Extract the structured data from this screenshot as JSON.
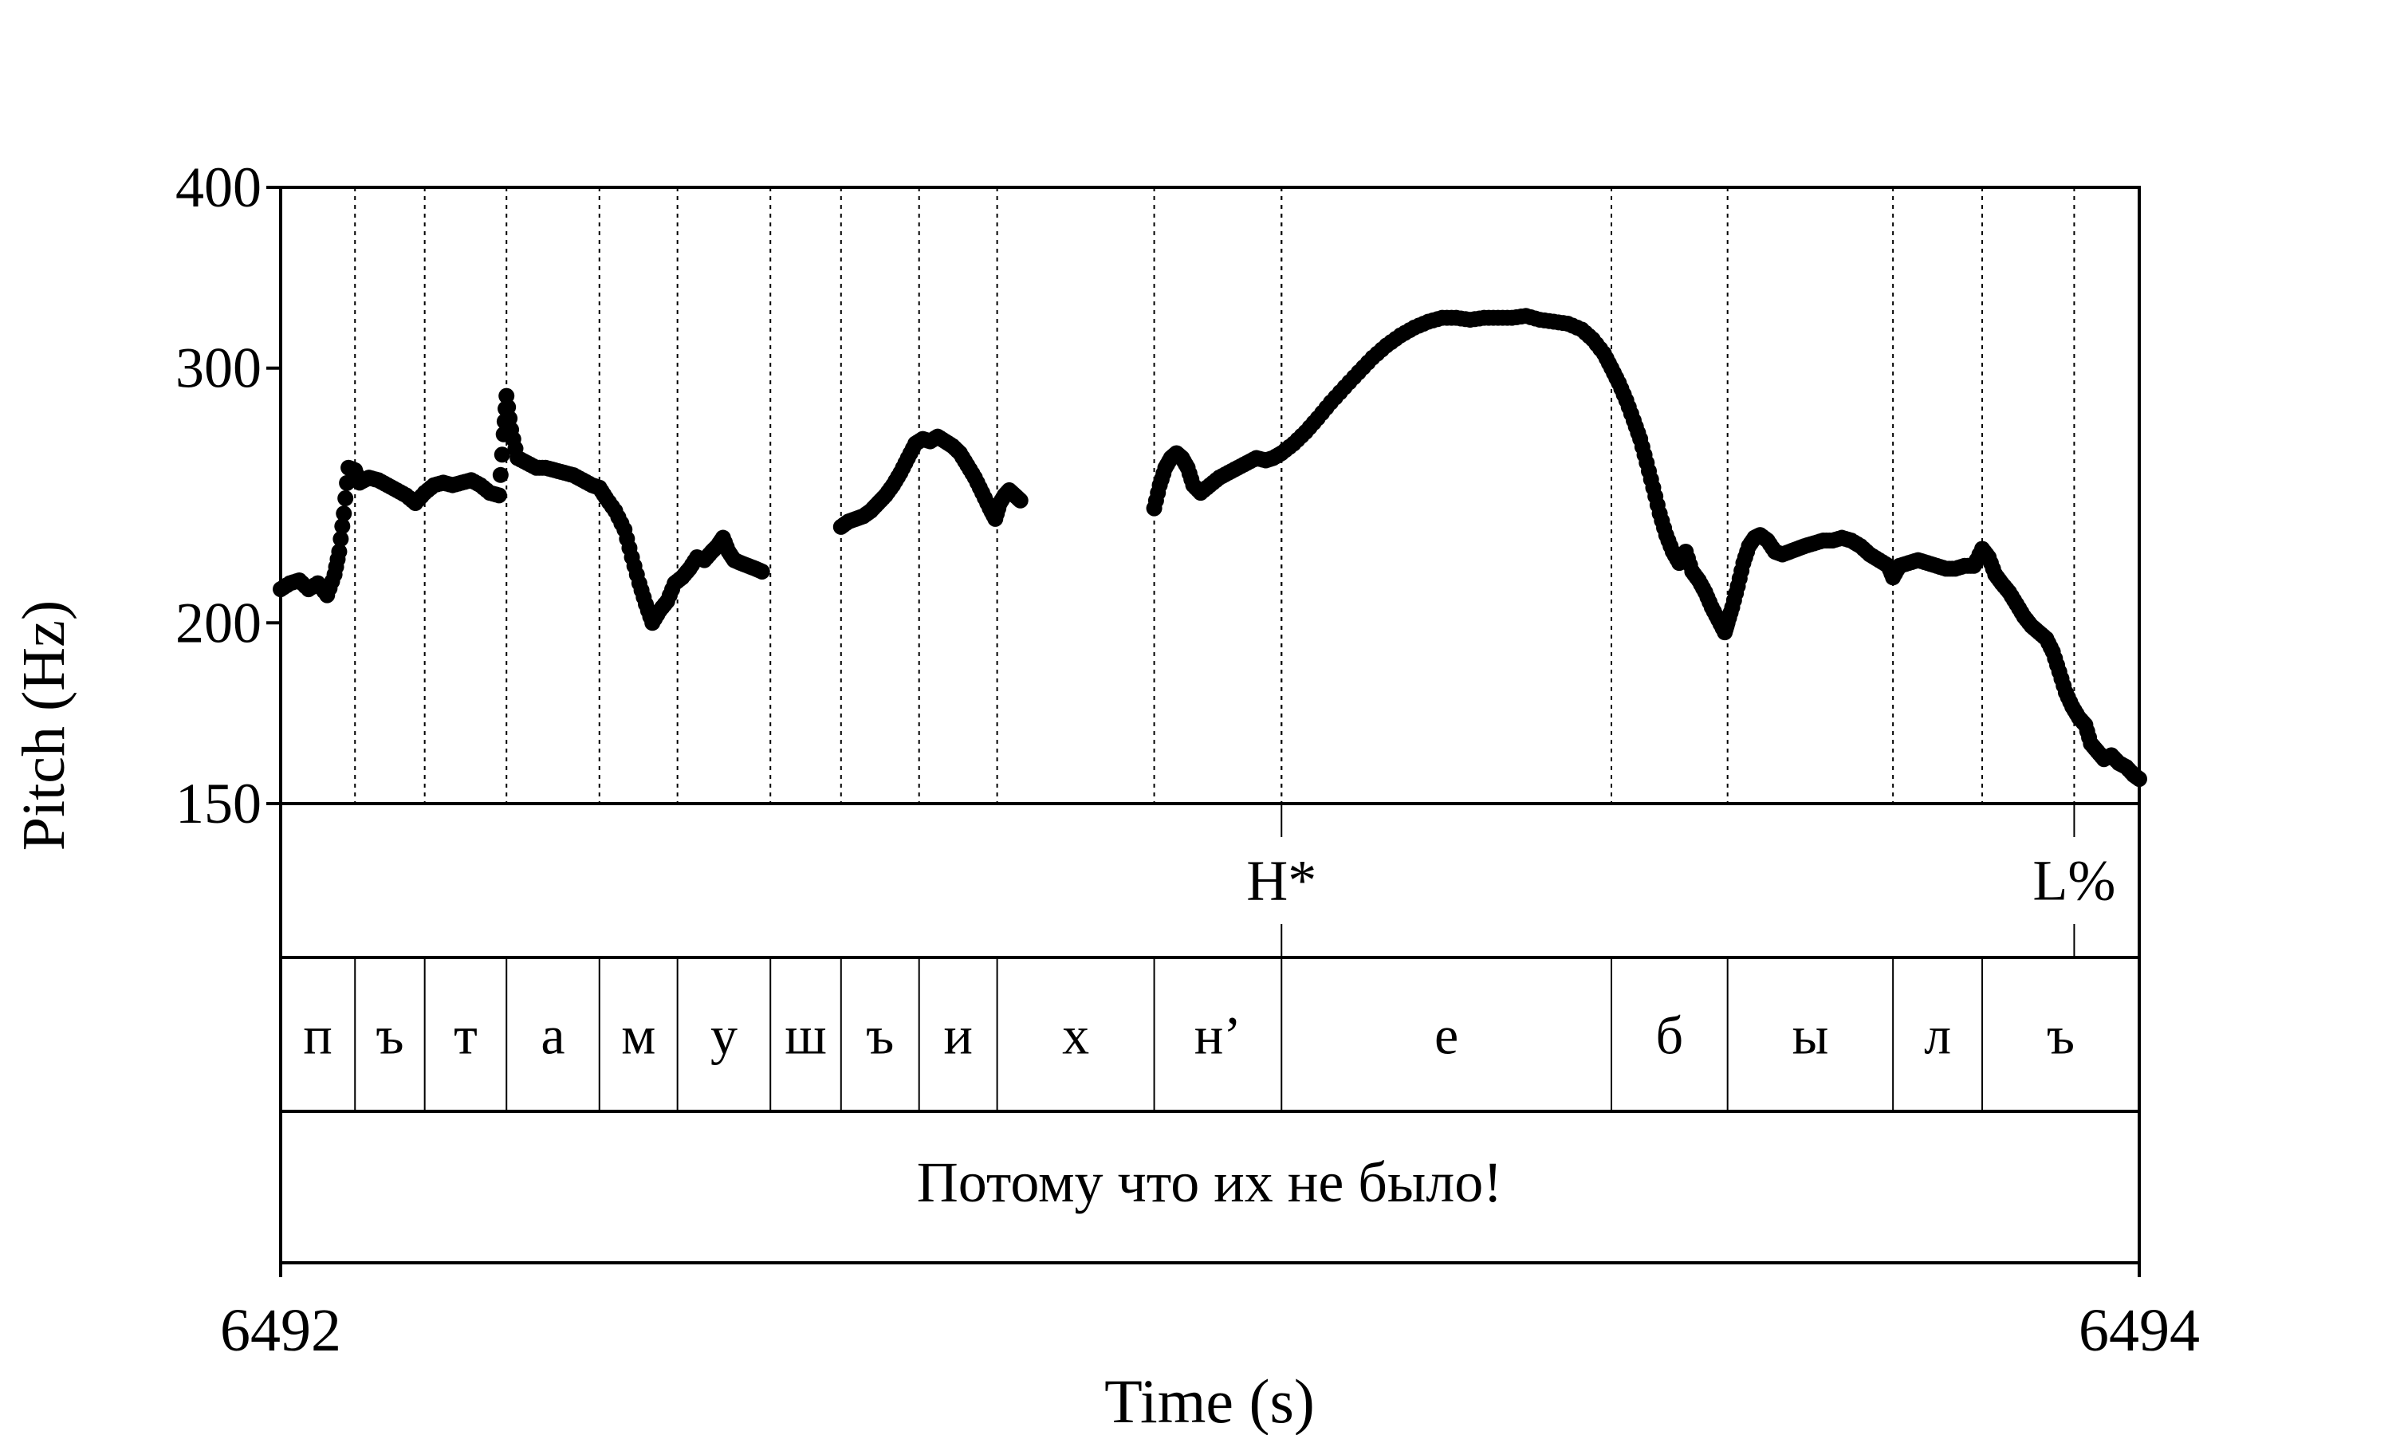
{
  "chart_data": {
    "type": "scatter",
    "title": "",
    "ylabel": "Pitch (Hz)",
    "xlabel": "Time (s)",
    "yscale": "log",
    "ylim": [
      150,
      400
    ],
    "xlim": [
      6492,
      6494
    ],
    "y_ticks": [
      {
        "value": 150,
        "label": "150"
      },
      {
        "value": 200,
        "label": "200"
      },
      {
        "value": 300,
        "label": "300"
      },
      {
        "value": 400,
        "label": "400"
      }
    ],
    "x_ticks": [
      {
        "value": 6492,
        "label": "6492"
      },
      {
        "value": 6494,
        "label": "6494"
      }
    ],
    "segment_boundaries": [
      6492.08,
      6492.155,
      6492.243,
      6492.343,
      6492.427,
      6492.527,
      6492.603,
      6492.687,
      6492.771,
      6492.94,
      6493.077,
      6493.432,
      6493.557,
      6493.735,
      6493.831,
      6494.0
    ],
    "tiers": {
      "tones": [
        {
          "time": 6493.077,
          "label": "H*"
        },
        {
          "time": 6493.93,
          "label": "L%"
        }
      ],
      "segments": [
        {
          "label": "п"
        },
        {
          "label": "ъ"
        },
        {
          "label": "т"
        },
        {
          "label": "а"
        },
        {
          "label": "м"
        },
        {
          "label": "у"
        },
        {
          "label": "ш"
        },
        {
          "label": "ъ"
        },
        {
          "label": "и"
        },
        {
          "label": "х"
        },
        {
          "label": "н’"
        },
        {
          "label": "е"
        },
        {
          "label": "б"
        },
        {
          "label": "ы"
        },
        {
          "label": "л"
        },
        {
          "label": "ъ"
        }
      ],
      "sentence": "Потому что их не было!"
    },
    "series": [
      {
        "points": [
          [
            6492.0,
            211
          ],
          [
            6492.01,
            213
          ],
          [
            6492.02,
            214
          ],
          [
            6492.03,
            211
          ],
          [
            6492.04,
            213
          ],
          [
            6492.05,
            209
          ],
          [
            6492.058,
            216
          ],
          [
            6492.063,
            224
          ],
          [
            6492.068,
            238
          ],
          [
            6492.073,
            256
          ],
          [
            6492.08,
            255
          ],
          [
            6492.085,
            250
          ],
          [
            6492.095,
            252
          ],
          [
            6492.105,
            251
          ],
          [
            6492.115,
            249
          ],
          [
            6492.125,
            247
          ],
          [
            6492.135,
            245
          ],
          [
            6492.145,
            242
          ],
          [
            6492.155,
            246
          ],
          [
            6492.165,
            249
          ],
          [
            6492.175,
            250
          ],
          [
            6492.185,
            249
          ],
          [
            6492.195,
            250
          ],
          [
            6492.205,
            251
          ],
          [
            6492.215,
            249
          ],
          [
            6492.225,
            246
          ],
          [
            6492.235,
            245
          ],
          [
            6492.24,
            270
          ],
          [
            6492.243,
            287
          ],
          [
            6492.248,
            272
          ],
          [
            6492.255,
            260
          ],
          [
            6492.265,
            258
          ],
          [
            6492.275,
            256
          ],
          [
            6492.285,
            256
          ],
          [
            6492.295,
            255
          ],
          [
            6492.305,
            254
          ],
          [
            6492.315,
            253
          ],
          [
            6492.325,
            251
          ],
          [
            6492.335,
            249
          ],
          [
            6492.343,
            248
          ],
          [
            6492.35,
            244
          ],
          [
            6492.36,
            239
          ],
          [
            6492.37,
            232
          ],
          [
            6492.378,
            222
          ],
          [
            6492.386,
            213
          ],
          [
            6492.393,
            206
          ],
          [
            6492.4,
            200
          ],
          [
            6492.408,
            204
          ],
          [
            6492.416,
            207
          ],
          [
            6492.424,
            213
          ],
          [
            6492.432,
            215
          ],
          [
            6492.44,
            218
          ],
          [
            6492.448,
            222
          ],
          [
            6492.456,
            221
          ],
          [
            6492.464,
            224
          ],
          [
            6492.47,
            226
          ],
          [
            6492.476,
            229
          ],
          [
            6492.482,
            224
          ],
          [
            6492.488,
            221
          ],
          [
            6492.495,
            220
          ],
          [
            6492.503,
            219
          ],
          [
            6492.511,
            218
          ],
          [
            6492.518,
            217
          ],
          [
            6492.603,
            233
          ],
          [
            6492.611,
            235
          ],
          [
            6492.619,
            236
          ],
          [
            6492.627,
            237
          ],
          [
            6492.635,
            239
          ],
          [
            6492.643,
            242
          ],
          [
            6492.651,
            245
          ],
          [
            6492.659,
            249
          ],
          [
            6492.667,
            254
          ],
          [
            6492.675,
            260
          ],
          [
            6492.683,
            266
          ],
          [
            6492.691,
            268
          ],
          [
            6492.699,
            267
          ],
          [
            6492.707,
            269
          ],
          [
            6492.715,
            267
          ],
          [
            6492.723,
            265
          ],
          [
            6492.731,
            262
          ],
          [
            6492.739,
            257
          ],
          [
            6492.747,
            252
          ],
          [
            6492.755,
            246
          ],
          [
            6492.763,
            240
          ],
          [
            6492.769,
            236
          ],
          [
            6492.774,
            242
          ],
          [
            6492.779,
            245
          ],
          [
            6492.784,
            247
          ],
          [
            6492.79,
            245
          ],
          [
            6492.796,
            243
          ],
          [
            6492.94,
            240
          ],
          [
            6492.946,
            249
          ],
          [
            6492.952,
            256
          ],
          [
            6492.958,
            260
          ],
          [
            6492.964,
            262
          ],
          [
            6492.97,
            260
          ],
          [
            6492.976,
            256
          ],
          [
            6492.982,
            249
          ],
          [
            6492.99,
            246
          ],
          [
            6493.0,
            249
          ],
          [
            6493.01,
            252
          ],
          [
            6493.02,
            254
          ],
          [
            6493.03,
            256
          ],
          [
            6493.04,
            258
          ],
          [
            6493.05,
            260
          ],
          [
            6493.06,
            259
          ],
          [
            6493.068,
            260
          ],
          [
            6493.077,
            262
          ],
          [
            6493.09,
            266
          ],
          [
            6493.103,
            271
          ],
          [
            6493.116,
            277
          ],
          [
            6493.13,
            284
          ],
          [
            6493.145,
            291
          ],
          [
            6493.16,
            298
          ],
          [
            6493.175,
            305
          ],
          [
            6493.19,
            311
          ],
          [
            6493.205,
            316
          ],
          [
            6493.22,
            320
          ],
          [
            6493.235,
            323
          ],
          [
            6493.25,
            325
          ],
          [
            6493.265,
            325
          ],
          [
            6493.28,
            324
          ],
          [
            6493.295,
            325
          ],
          [
            6493.31,
            325
          ],
          [
            6493.325,
            325
          ],
          [
            6493.34,
            326
          ],
          [
            6493.355,
            324
          ],
          [
            6493.37,
            323
          ],
          [
            6493.385,
            322
          ],
          [
            6493.4,
            319
          ],
          [
            6493.412,
            314
          ],
          [
            6493.424,
            307
          ],
          [
            6493.432,
            300
          ],
          [
            6493.44,
            293
          ],
          [
            6493.448,
            285
          ],
          [
            6493.456,
            276
          ],
          [
            6493.463,
            268
          ],
          [
            6493.47,
            258
          ],
          [
            6493.477,
            248
          ],
          [
            6493.484,
            238
          ],
          [
            6493.491,
            230
          ],
          [
            6493.498,
            224
          ],
          [
            6493.505,
            220
          ],
          [
            6493.512,
            224
          ],
          [
            6493.519,
            217
          ],
          [
            6493.526,
            214
          ],
          [
            6493.533,
            210
          ],
          [
            6493.54,
            205
          ],
          [
            6493.547,
            201
          ],
          [
            6493.554,
            197
          ],
          [
            6493.557,
            200
          ],
          [
            6493.562,
            205
          ],
          [
            6493.568,
            212
          ],
          [
            6493.574,
            220
          ],
          [
            6493.58,
            226
          ],
          [
            6493.586,
            229
          ],
          [
            6493.592,
            230
          ],
          [
            6493.6,
            228
          ],
          [
            6493.608,
            224
          ],
          [
            6493.616,
            223
          ],
          [
            6493.624,
            224
          ],
          [
            6493.632,
            225
          ],
          [
            6493.64,
            226
          ],
          [
            6493.65,
            227
          ],
          [
            6493.66,
            228
          ],
          [
            6493.67,
            228
          ],
          [
            6493.68,
            229
          ],
          [
            6493.69,
            228
          ],
          [
            6493.7,
            226
          ],
          [
            6493.71,
            223
          ],
          [
            6493.72,
            221
          ],
          [
            6493.73,
            219
          ],
          [
            6493.735,
            215
          ],
          [
            6493.742,
            219
          ],
          [
            6493.752,
            220
          ],
          [
            6493.762,
            221
          ],
          [
            6493.772,
            220
          ],
          [
            6493.782,
            219
          ],
          [
            6493.792,
            218
          ],
          [
            6493.802,
            218
          ],
          [
            6493.812,
            219
          ],
          [
            6493.822,
            219
          ],
          [
            6493.831,
            225
          ],
          [
            6493.838,
            222
          ],
          [
            6493.845,
            216
          ],
          [
            6493.852,
            213
          ],
          [
            6493.86,
            210
          ],
          [
            6493.868,
            206
          ],
          [
            6493.876,
            202
          ],
          [
            6493.884,
            199
          ],
          [
            6493.892,
            197
          ],
          [
            6493.9,
            195
          ],
          [
            6493.907,
            191
          ],
          [
            6493.914,
            185
          ],
          [
            6493.921,
            179
          ],
          [
            6493.928,
            175
          ],
          [
            6493.935,
            172
          ],
          [
            6493.942,
            170
          ],
          [
            6493.948,
            165
          ],
          [
            6493.955,
            163
          ],
          [
            6493.962,
            161
          ],
          [
            6493.97,
            162
          ],
          [
            6493.978,
            160
          ],
          [
            6493.986,
            159
          ],
          [
            6493.994,
            157
          ],
          [
            6494.0,
            156
          ]
        ]
      }
    ]
  }
}
